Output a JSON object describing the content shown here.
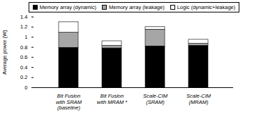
{
  "chart_data": {
    "type": "bar",
    "stacked": true,
    "legend": "top",
    "y_label": "Average power (W)",
    "categories": [
      "Bit Fusion\nwith SRAM\n(baseline)",
      "Bit Fusion\nwith MRAM *",
      "Scale-CIM\n(SRAM)",
      "Scale-CIM\n(MRAM)"
    ],
    "series": [
      {
        "name": "Memory array (dynamic)",
        "color": "#000000",
        "values": [
          0.79,
          0.78,
          0.82,
          0.83
        ]
      },
      {
        "name": "Memory array (leakage)",
        "color": "#a6a6a6",
        "values": [
          0.3,
          0.05,
          0.33,
          0.04
        ]
      },
      {
        "name": "Logic (dynamic+leakage)",
        "color": "#ffffff",
        "values": [
          0.21,
          0.09,
          0.05,
          0.08
        ]
      }
    ],
    "ylim": [
      0,
      1.4
    ],
    "yticks": [
      0,
      0.2,
      0.4,
      0.6,
      0.8,
      1,
      1.2,
      1.4
    ]
  }
}
